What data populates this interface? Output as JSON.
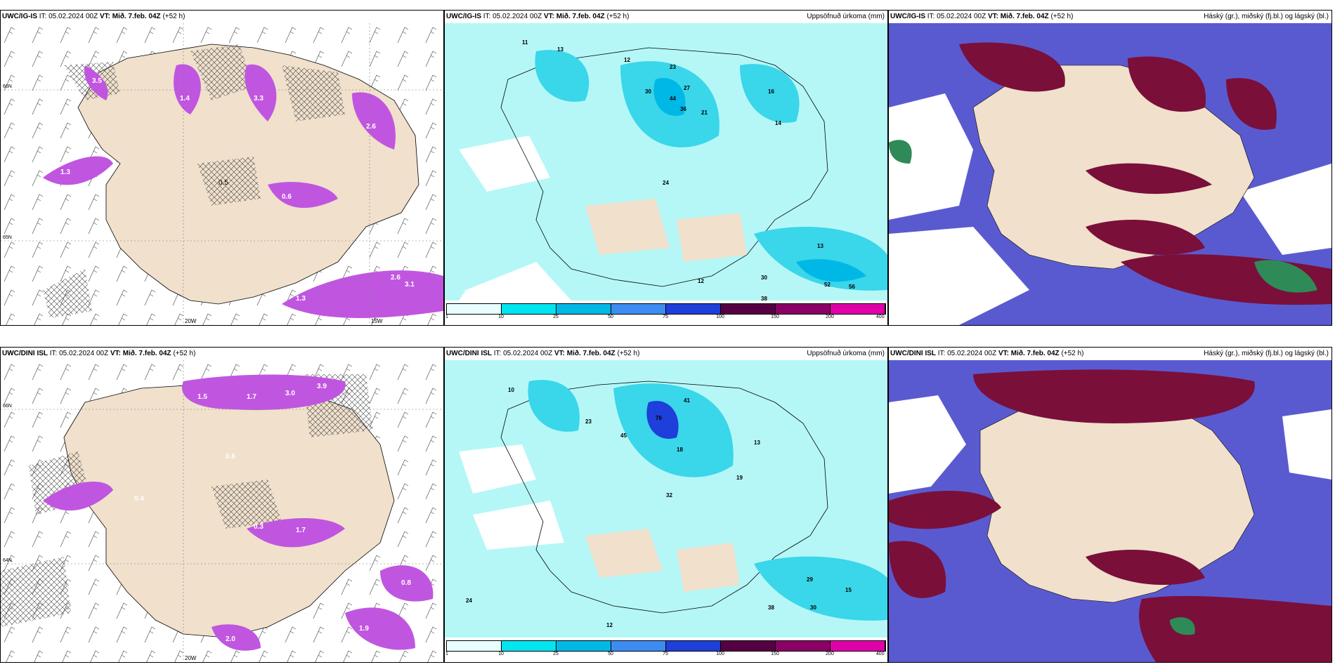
{
  "rows": [
    {
      "model": "UWC/IG-IS",
      "it_label": "IT:",
      "it_value": "05.02.2024 00Z",
      "vt_label": "VT:",
      "vt_value": "Mið. 7.feb. 04Z",
      "lead": "(+52 h)"
    },
    {
      "model": "UWC/DINI ISL",
      "it_label": "IT:",
      "it_value": "05.02.2024 00Z",
      "vt_label": "VT:",
      "vt_value": "Mið. 7.feb. 04Z",
      "lead": "(+52 h)"
    }
  ],
  "precip_title": "Uppsöfnuð úrkoma (mm)",
  "cloud_title": "Háský (gr.), miðský (fj.bl.) og lágský (bl.)",
  "lon_labels": [
    "20W",
    "15W"
  ],
  "lat_labels": [
    "66N",
    "65N",
    "64N"
  ],
  "precip_scale": {
    "ticks": [
      "1",
      "10",
      "25",
      "50",
      "75",
      "100",
      "150",
      "200",
      "400"
    ],
    "colors": [
      "#e8ffff",
      "#00e5f0",
      "#00b8e6",
      "#3d8cf2",
      "#1e3fd9",
      "#550044",
      "#8a0066",
      "#e000a8",
      "#f5b8f5"
    ]
  },
  "colors": {
    "land": "#f0e0cc",
    "icing": "#c056e0",
    "precip_light": "#b5f7f7",
    "precip_mid": "#3ad6ea",
    "cloud_high": "#7a0f3a",
    "cloud_mid": "#5a5ad0"
  },
  "values_top_left": [
    "3.5",
    "1.4",
    "3.3",
    "2.6",
    "1.3",
    "0.5",
    "0.6",
    "2.6",
    "3.1",
    "1.3"
  ],
  "values_top_mid": [
    "11",
    "13",
    "12",
    "23",
    "30",
    "44",
    "27",
    "36",
    "21",
    "14",
    "16",
    "24",
    "13",
    "12",
    "30",
    "52",
    "56",
    "38"
  ],
  "values_bot_left": [
    "1.5",
    "1.7",
    "3.0",
    "3.9",
    "0.6",
    "0.4",
    "0.3",
    "1.7",
    "0.8",
    "1.9",
    "2.0"
  ],
  "values_bot_mid": [
    "10",
    "23",
    "45",
    "76",
    "41",
    "18",
    "13",
    "32",
    "19",
    "24",
    "12",
    "38",
    "30",
    "29",
    "15"
  ]
}
